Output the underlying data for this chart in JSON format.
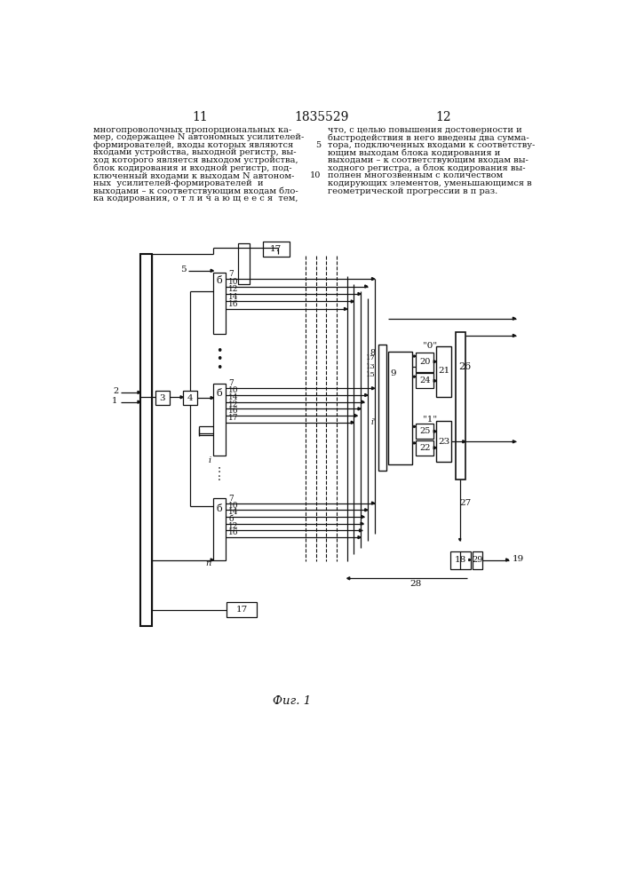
{
  "bg": "#ffffff",
  "ink": "#111111",
  "page_left": "11",
  "page_mid": "1835529",
  "page_right": "12",
  "caption": "Фиг. 1",
  "col1_lines": [
    "многопроволочных пропорциональных ка-",
    "мер, содержащее N автономных усилителей-",
    "формирователей, входы которых являются",
    "входами устройства, выходной регистр, вы-",
    "ход которого является выходом устройства,",
    "блок кодирования и входной регистр, под-",
    "ключенный входами к выходам N автоном-",
    "ных  усилителей-формирователей  и",
    "выходами – к соответствующим входам бло-",
    "ка кодирования, о т л и ч а ю щ е е с я  тем,"
  ],
  "col2_lines": [
    "что, с целью повышения достоверности и",
    "быстродействия в него введены два сумма-",
    "тора, подключенных входами к соответству-",
    "ющим выходам блока кодирования и",
    "выходами – к соответствующим входам вы-",
    "ходного регистра, а блок кодирования вы-",
    "полнен многозвенным с количеством",
    "кодирующих элементов, уменьшающимся в",
    "геометрической прогрессии в п раз."
  ]
}
